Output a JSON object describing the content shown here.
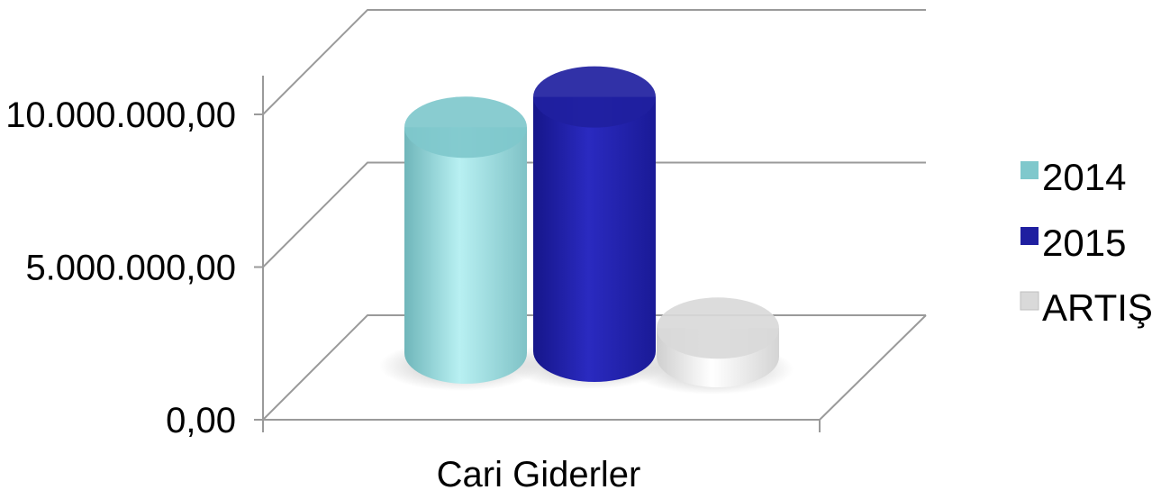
{
  "chart_data": {
    "type": "bar",
    "style": "3d-cylinder",
    "categories": [
      "Cari Giderler"
    ],
    "series": [
      {
        "name": "2014",
        "values": [
          8700000
        ],
        "color": "#7fc8cc"
      },
      {
        "name": "2015",
        "values": [
          9800000
        ],
        "color": "#1f1fa0"
      },
      {
        "name": "ARTIŞ",
        "values": [
          1100000
        ],
        "color": "#d9d9d9"
      }
    ],
    "yticks": [
      "0,00",
      "5.000.000,00",
      "10.000.000,00"
    ],
    "ytick_values": [
      0,
      5000000,
      10000000
    ],
    "ylim": [
      0,
      10000000
    ],
    "grid": true,
    "legend": "right"
  }
}
